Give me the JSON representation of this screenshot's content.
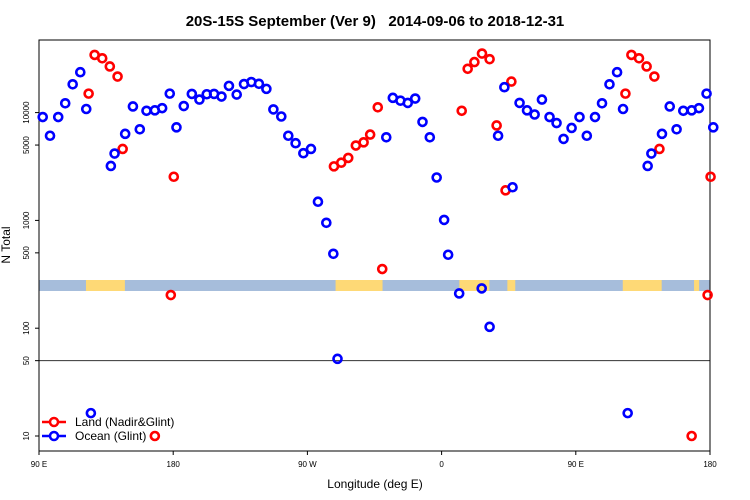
{
  "chart_data": {
    "type": "scatter",
    "title": "20S-15S September (Ver 9)   2014-09-06 to 2018-12-31",
    "xlabel": "Longitude (deg E)",
    "ylabel": "N Total",
    "xlim": [
      90,
      540
    ],
    "ylim_log": [
      10,
      50000
    ],
    "yscale": "log",
    "x_ticks": [
      {
        "value": 90,
        "label": "90 E"
      },
      {
        "value": 180,
        "label": "180"
      },
      {
        "value": 270,
        "label": "90 W"
      },
      {
        "value": 360,
        "label": "0"
      },
      {
        "value": 450,
        "label": "90 E"
      },
      {
        "value": 540,
        "label": "180"
      }
    ],
    "y_ticks": [
      {
        "value": 10,
        "label": "10"
      },
      {
        "value": 50,
        "label": "50"
      },
      {
        "value": 100,
        "label": "100"
      },
      {
        "value": 500,
        "label": "500"
      },
      {
        "value": 1000,
        "label": "1000"
      },
      {
        "value": 5000,
        "label": "5000"
      },
      {
        "value": 10000,
        "label": "10000"
      }
    ],
    "reference_line_value": 50,
    "wrap_period_deg": 360,
    "legend_position": "bottom-left",
    "land_mask_band": {
      "ocean_color": "#a6bddb",
      "land_color": "#fed976",
      "land_segments_lon": [
        [
          121.5,
          147.6
        ],
        [
          288.9,
          320.4
        ],
        [
          371.9,
          392
        ],
        [
          404.1,
          409.4
        ],
        [
          481.5,
          507.6
        ],
        [
          529.3,
          532.7
        ]
      ]
    },
    "series": [
      {
        "name": "Land (Nadir&Glint)",
        "color": "#ff0000",
        "points": [
          [
            123.3,
            15000
          ],
          [
            127.3,
            34300
          ],
          [
            132.4,
            31900
          ],
          [
            137.5,
            26800
          ],
          [
            142.7,
            21600
          ],
          [
            146.1,
            4600
          ],
          [
            167.7,
            10
          ],
          [
            178.4,
            203
          ],
          [
            180.4,
            2540
          ],
          [
            287.8,
            3170
          ],
          [
            292.7,
            3430
          ],
          [
            297.4,
            3800
          ],
          [
            302.5,
            4950
          ],
          [
            307.7,
            5300
          ],
          [
            312.1,
            6250
          ],
          [
            317.2,
            11200
          ],
          [
            320.2,
            354
          ],
          [
            373.5,
            10400
          ],
          [
            377.5,
            25500
          ],
          [
            382.0,
            29400
          ],
          [
            387.1,
            35300
          ],
          [
            392.2,
            31300
          ],
          [
            396.9,
            7600
          ],
          [
            402.9,
            1900
          ],
          [
            406.8,
            19400
          ]
        ]
      },
      {
        "name": "Ocean (Glint)",
        "color": "#0000ff",
        "points": [
          [
            92.5,
            9100
          ],
          [
            97.4,
            6100
          ],
          [
            102.9,
            9100
          ],
          [
            107.6,
            12200
          ],
          [
            112.6,
            18300
          ],
          [
            117.7,
            23700
          ],
          [
            121.7,
            10800
          ],
          [
            124.8,
            16.3
          ],
          [
            138.2,
            3200
          ],
          [
            140.7,
            4170
          ],
          [
            147.8,
            6350
          ],
          [
            153.0,
            11400
          ],
          [
            157.6,
            7000
          ],
          [
            162.1,
            10400
          ],
          [
            167.7,
            10500
          ],
          [
            172.6,
            11000
          ],
          [
            177.7,
            15000
          ],
          [
            182.2,
            7300
          ],
          [
            187.1,
            11500
          ],
          [
            192.5,
            14900
          ],
          [
            197.6,
            13200
          ],
          [
            202.5,
            14800
          ],
          [
            207.4,
            14900
          ],
          [
            212.4,
            14100
          ],
          [
            217.4,
            17700
          ],
          [
            222.6,
            14700
          ],
          [
            227.5,
            18400
          ],
          [
            232.4,
            19200
          ],
          [
            237.5,
            18500
          ],
          [
            242.5,
            16600
          ],
          [
            247.2,
            10700
          ],
          [
            252.5,
            9200
          ],
          [
            257.2,
            6100
          ],
          [
            262.1,
            5200
          ],
          [
            267.3,
            4200
          ],
          [
            272.4,
            4600
          ],
          [
            277.1,
            1490
          ],
          [
            282.7,
            950
          ],
          [
            287.4,
            490
          ],
          [
            290.2,
            52
          ],
          [
            322.9,
            5900
          ],
          [
            327.3,
            13700
          ],
          [
            332.4,
            12900
          ],
          [
            337.3,
            12300
          ],
          [
            342.3,
            13500
          ],
          [
            347.2,
            8200
          ],
          [
            352.1,
            5900
          ],
          [
            356.7,
            2500
          ],
          [
            361.7,
            1010
          ],
          [
            364.4,
            480
          ],
          [
            371.8,
            210
          ],
          [
            386.9,
            234
          ],
          [
            392.2,
            103
          ],
          [
            397.9,
            6100
          ],
          [
            402.1,
            17200
          ],
          [
            407.6,
            2030
          ],
          [
            412.3,
            12300
          ],
          [
            417.3,
            10500
          ],
          [
            422.4,
            9600
          ],
          [
            427.3,
            13200
          ],
          [
            432.4,
            9100
          ],
          [
            437.1,
            8000
          ],
          [
            441.8,
            5700
          ],
          [
            447.2,
            7200
          ]
        ]
      }
    ]
  }
}
